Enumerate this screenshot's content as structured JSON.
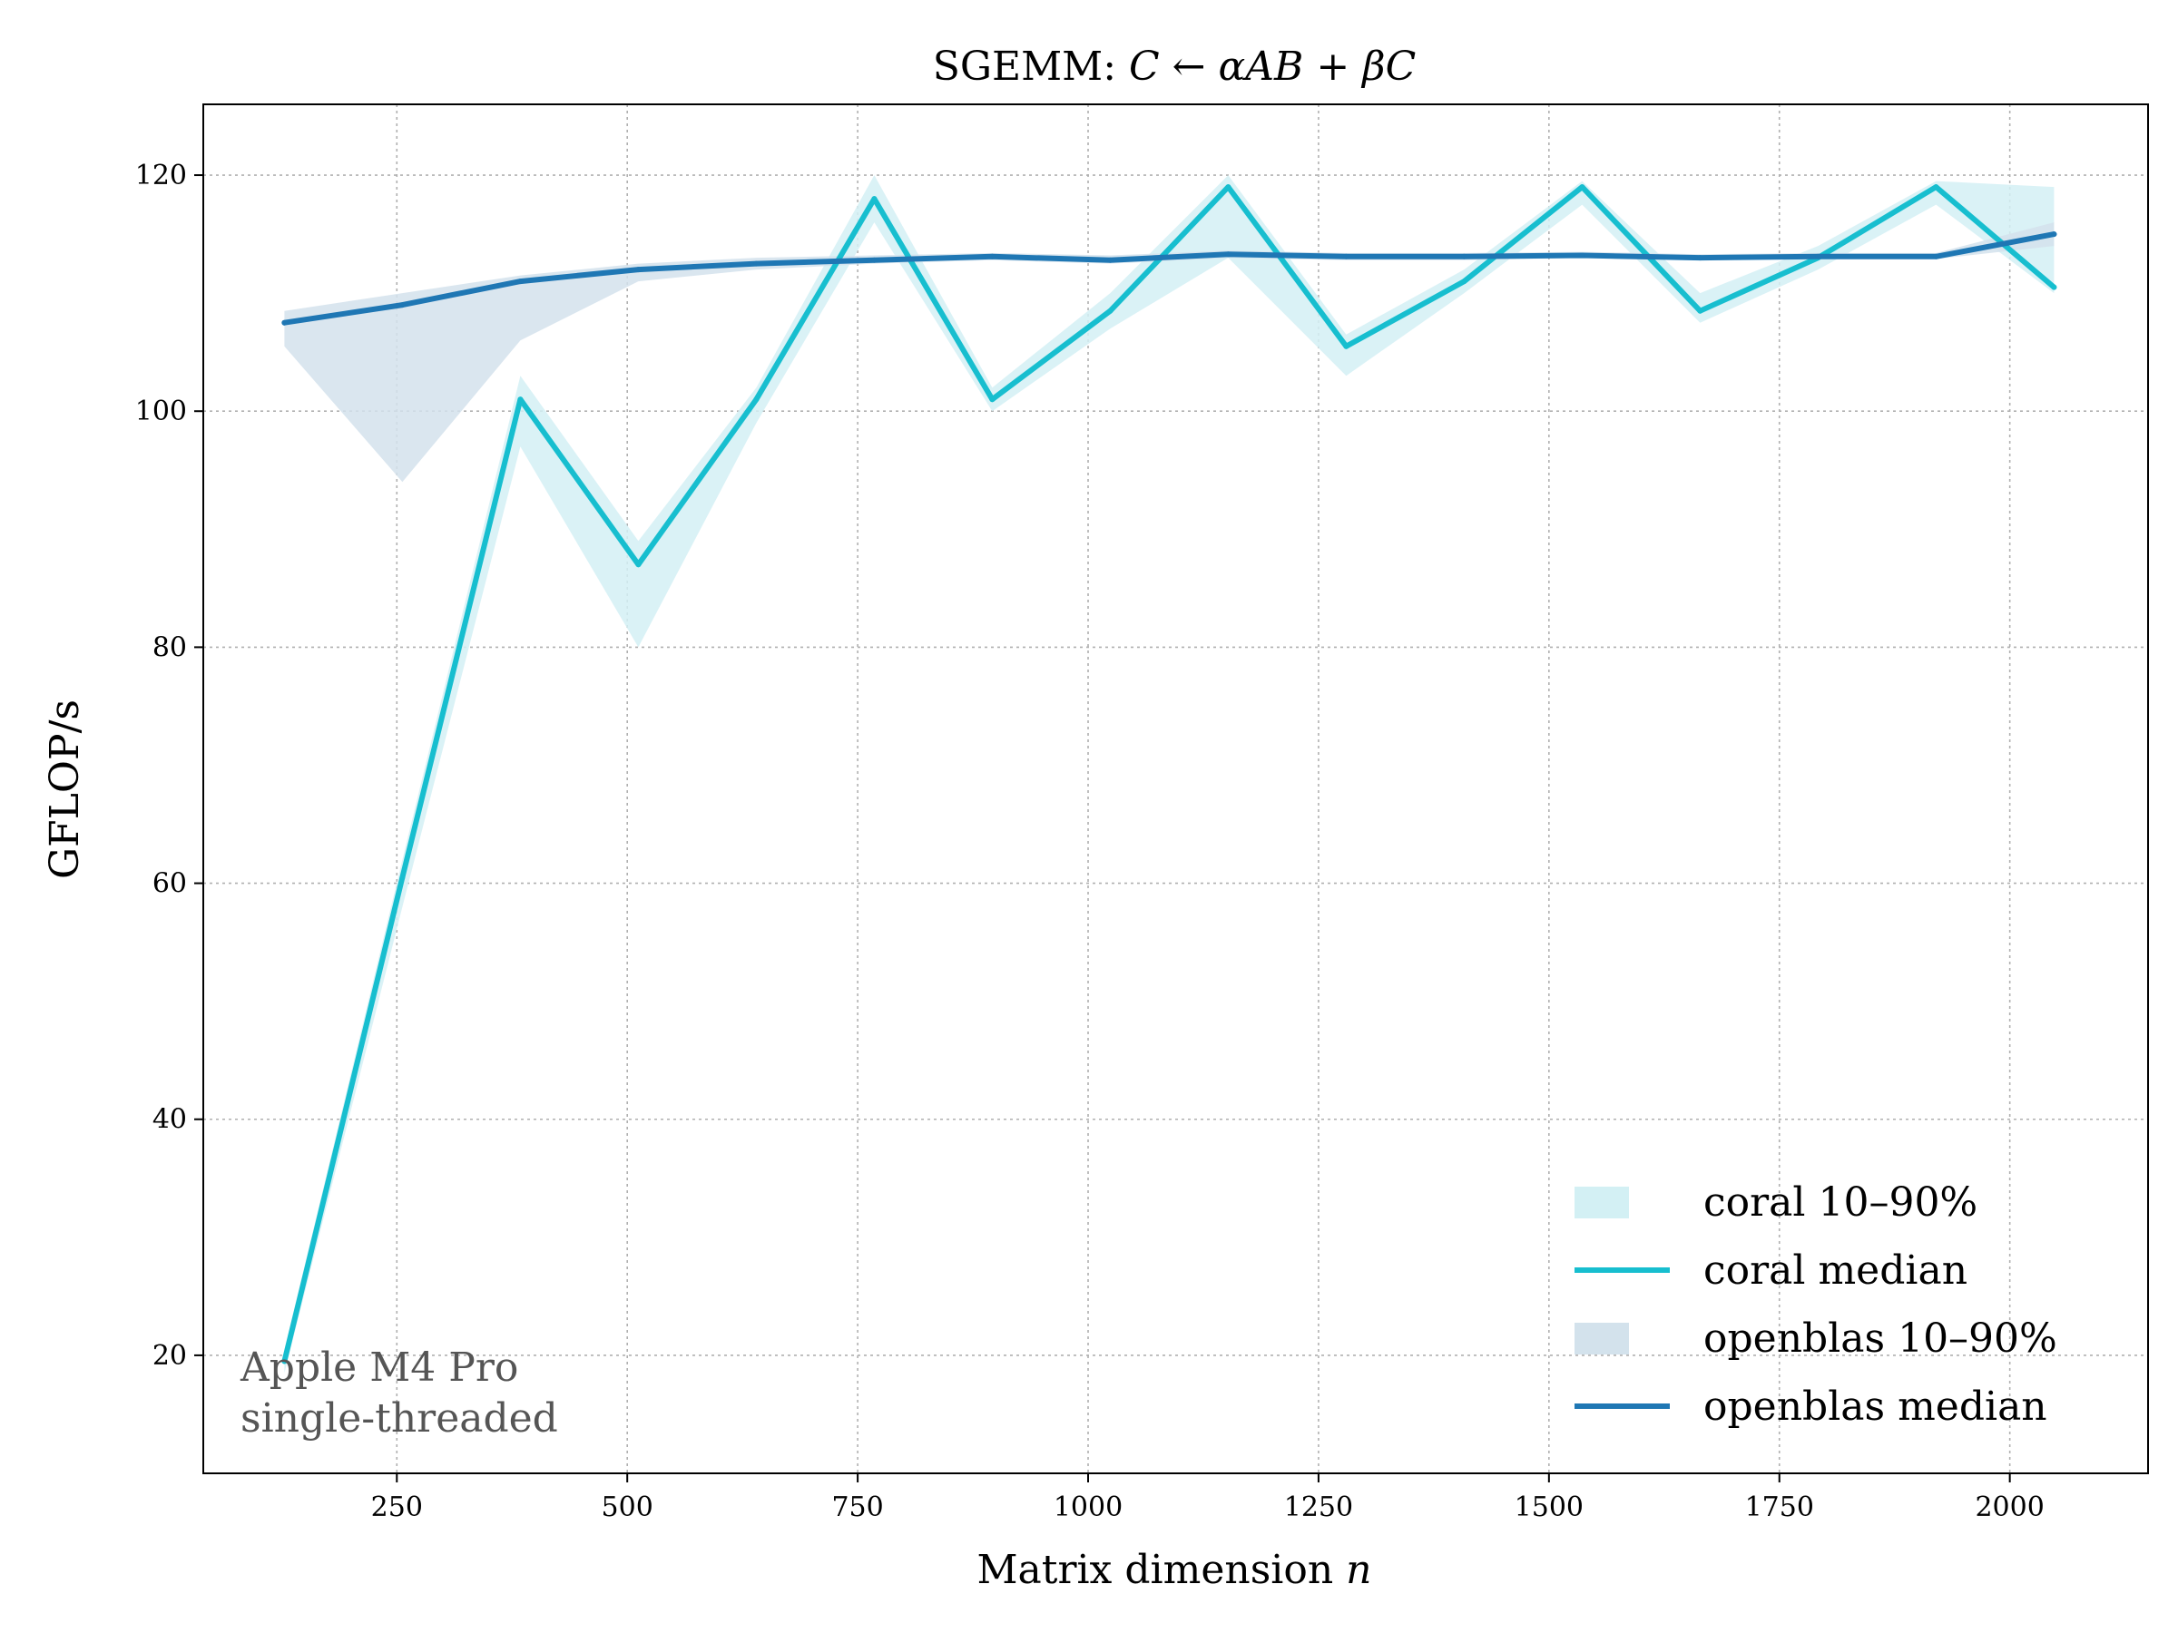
{
  "chart_data": {
    "type": "line",
    "title_prefix": "SGEMM: ",
    "title_math": "C ← αAB + βC",
    "xlabel_prefix": "Matrix dimension ",
    "xlabel_math": "n",
    "ylabel": "GFLOP/s",
    "xlim": [
      40,
      2150
    ],
    "ylim": [
      10,
      126
    ],
    "xticks": [
      250,
      500,
      750,
      1000,
      1250,
      1500,
      1750,
      2000
    ],
    "yticks": [
      20,
      40,
      60,
      80,
      100,
      120
    ],
    "grid": true,
    "legend_position": "lower-right",
    "x": [
      128,
      256,
      384,
      512,
      640,
      768,
      896,
      1024,
      1152,
      1280,
      1408,
      1536,
      1664,
      1792,
      1920,
      2048
    ],
    "series": [
      {
        "name": "coral median",
        "band_name": "coral 10–90%",
        "color": "#17becf",
        "band_color": "#d3f0f4",
        "values": [
          19.5,
          60.5,
          101,
          87,
          101,
          118,
          101,
          108.5,
          119,
          105.5,
          111,
          119,
          108.5,
          113,
          119,
          110.5
        ],
        "p10": [
          18.5,
          58,
          97,
          80,
          99,
          116,
          100,
          107,
          113,
          103,
          110,
          117.5,
          107.5,
          112,
          117.5,
          110
        ],
        "p90": [
          20.5,
          62,
          103,
          89,
          102,
          120,
          102,
          110,
          120,
          106.5,
          112,
          119.5,
          110,
          114,
          119.5,
          119
        ]
      },
      {
        "name": "openblas median",
        "band_name": "openblas 10–90%",
        "color": "#1f77b4",
        "band_color": "#d3e2ec",
        "values": [
          107.5,
          109,
          111,
          112,
          112.5,
          112.8,
          113.1,
          112.8,
          113.3,
          113.1,
          113.1,
          113.2,
          113,
          113.1,
          113.1,
          115
        ],
        "p10": [
          105.5,
          94,
          106,
          111,
          112,
          112.5,
          112.8,
          112.5,
          113,
          112.8,
          112.8,
          113,
          112.8,
          112.9,
          112.9,
          114
        ],
        "p90": [
          108.5,
          110,
          111.5,
          112.5,
          113,
          113.2,
          113.4,
          113.2,
          113.6,
          113.4,
          113.4,
          113.5,
          113.3,
          113.4,
          113.4,
          116
        ]
      }
    ]
  },
  "annotation": {
    "line1": "Apple M4 Pro",
    "line2": "single-threaded"
  }
}
